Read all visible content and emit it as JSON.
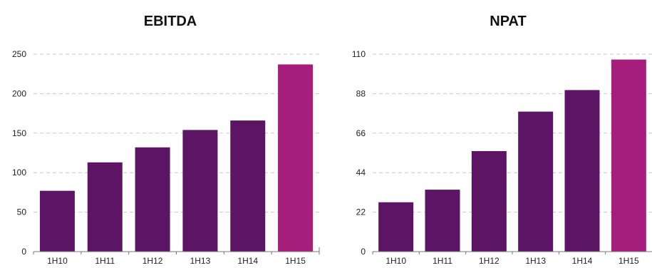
{
  "chart_data": [
    {
      "type": "bar",
      "title": "EBITDA",
      "xlabel": "",
      "ylabel": "",
      "categories": [
        "1H10",
        "1H11",
        "1H12",
        "1H13",
        "1H14",
        "1H15"
      ],
      "values": [
        77,
        113,
        132,
        154,
        166,
        237
      ],
      "ylim": [
        0,
        250
      ],
      "yticks": [
        "0",
        "50",
        "100",
        "150",
        "200",
        "250"
      ],
      "grid": true,
      "bar_colors": [
        "#5c1464",
        "#5c1464",
        "#5c1464",
        "#5c1464",
        "#5c1464",
        "#a51e7b"
      ]
    },
    {
      "type": "bar",
      "title": "NPAT",
      "xlabel": "",
      "ylabel": "",
      "categories": [
        "1H10",
        "1H11",
        "1H12",
        "1H13",
        "1H14",
        "1H15"
      ],
      "values": [
        27.5,
        34.5,
        56,
        78,
        90,
        107
      ],
      "ylim": [
        0,
        110
      ],
      "yticks": [
        "0",
        "22",
        "44",
        "66",
        "88",
        "110"
      ],
      "grid": true,
      "bar_colors": [
        "#5c1464",
        "#5c1464",
        "#5c1464",
        "#5c1464",
        "#5c1464",
        "#a51e7b"
      ]
    }
  ]
}
